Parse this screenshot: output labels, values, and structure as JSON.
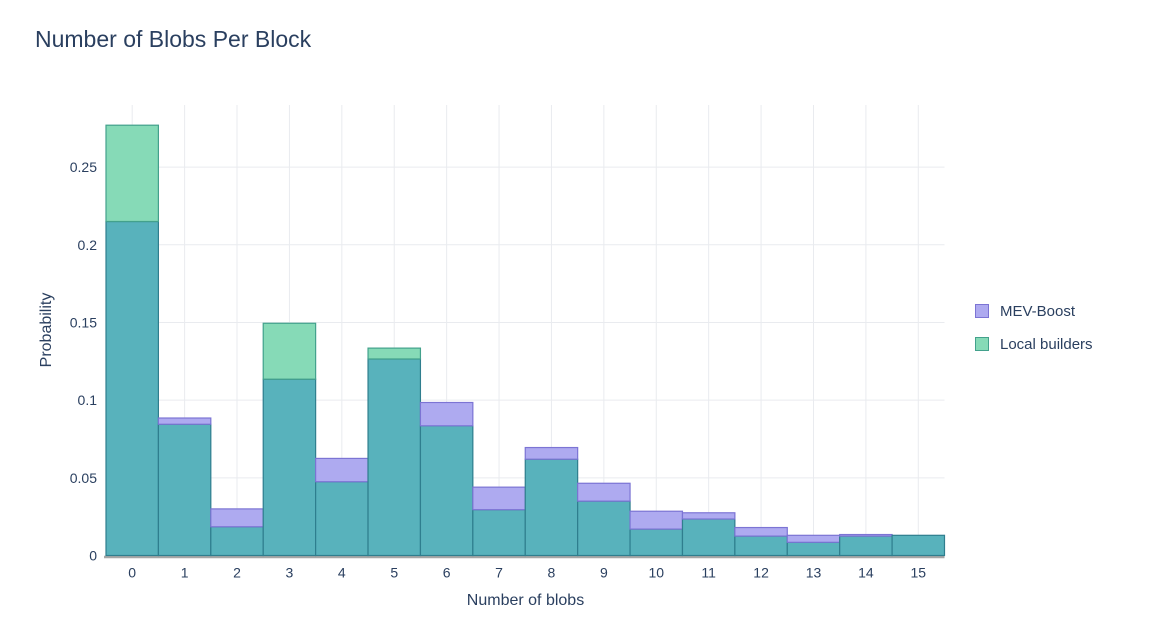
{
  "title": "Number of Blobs Per Block",
  "colors": {
    "text": "#2a3f5f",
    "grid": "#e9ebef",
    "zeroline": "#a6a6a6",
    "mev_fill": "#aeaaf0",
    "mev_stroke": "#7c74d4",
    "local_fill": "#86dab7",
    "local_stroke": "#43a18c",
    "overlap_fill": "#58b2bc",
    "overlap_stroke": "#2f7e8e"
  },
  "chart_data": {
    "type": "bar",
    "subtype": "overlaid-histogram",
    "title": "Number of Blobs Per Block",
    "xlabel": "Number of blobs",
    "ylabel": "Probability",
    "categories": [
      "0",
      "1",
      "2",
      "3",
      "4",
      "5",
      "6",
      "7",
      "8",
      "9",
      "10",
      "11",
      "12",
      "13",
      "14",
      "15"
    ],
    "series": [
      {
        "name": "MEV-Boost",
        "values": [
          0.215,
          0.0885,
          0.03,
          0.1135,
          0.0625,
          0.1265,
          0.0985,
          0.044,
          0.0695,
          0.0465,
          0.0285,
          0.0275,
          0.018,
          0.013,
          0.0135,
          0.013
        ]
      },
      {
        "name": "Local builders",
        "values": [
          0.277,
          0.0845,
          0.0185,
          0.1495,
          0.0475,
          0.1335,
          0.0835,
          0.0295,
          0.062,
          0.035,
          0.017,
          0.0235,
          0.0125,
          0.0085,
          0.0125,
          0.013
        ]
      }
    ],
    "ylim": [
      0,
      0.29
    ],
    "yticks": [
      "0",
      "0.05",
      "0.1",
      "0.15",
      "0.2",
      "0.25"
    ],
    "grid": true,
    "legend_position": "right"
  }
}
